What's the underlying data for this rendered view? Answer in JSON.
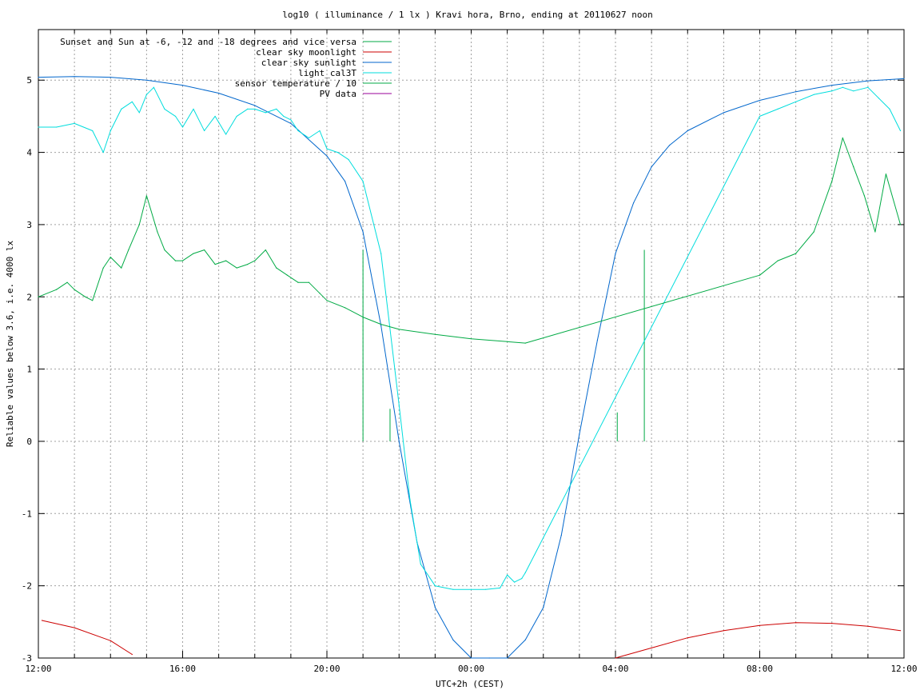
{
  "chart_data": {
    "type": "line",
    "title": "log10 ( illuminance / 1 lx ) Kravi hora, Brno, ending at 20110627 noon",
    "xlabel": "UTC+2h (CEST)",
    "ylabel": "Reliable values below 3.6, i.e. 4000 lx",
    "xlim": [
      0,
      24
    ],
    "ylim": [
      -3,
      5.7
    ],
    "x_tick_labels": [
      {
        "x": 0,
        "label": "12:00"
      },
      {
        "x": 4,
        "label": "16:00"
      },
      {
        "x": 8,
        "label": "20:00"
      },
      {
        "x": 12,
        "label": "00:00"
      },
      {
        "x": 16,
        "label": "04:00"
      },
      {
        "x": 20,
        "label": "08:00"
      },
      {
        "x": 24,
        "label": "12:00"
      }
    ],
    "y_ticks": [
      -3,
      -2,
      -1,
      0,
      1,
      2,
      3,
      4,
      5
    ],
    "grid": true,
    "legend_position": "top-left",
    "series": [
      {
        "name": "Sunset and Sun at -6, -12 and -18 degrees and vice versa",
        "color": "#00aa44",
        "kind": "impulses",
        "x": [
          9.0,
          9.75,
          10.75,
          15.0,
          16.05,
          16.8
        ],
        "values": [
          2.65,
          0.45,
          0.0,
          0.0,
          0.4,
          2.65
        ]
      },
      {
        "name": "clear sky moonlight",
        "color": "#cc0000",
        "x": [
          0.1,
          1.0,
          2.0,
          2.6,
          16.0,
          17.0,
          18.0,
          19.0,
          20.0,
          21.0,
          22.0,
          23.0,
          23.9
        ],
        "values": [
          -2.48,
          -2.58,
          -2.76,
          -2.95,
          -3.0,
          -2.86,
          -2.72,
          -2.62,
          -2.55,
          -2.51,
          -2.52,
          -2.56,
          -2.62
        ]
      },
      {
        "name": "clear sky sunlight",
        "color": "#0066cc",
        "x": [
          0,
          1,
          2,
          3,
          4,
          5,
          6,
          7,
          8,
          8.5,
          9,
          9.5,
          10,
          10.5,
          11,
          11.5,
          12,
          12.5,
          13,
          13.5,
          14,
          14.5,
          15,
          15.5,
          16,
          16.5,
          17,
          17.5,
          18,
          19,
          20,
          21,
          22,
          23,
          24
        ],
        "values": [
          5.04,
          5.05,
          5.04,
          5.0,
          4.93,
          4.82,
          4.65,
          4.4,
          3.95,
          3.6,
          2.9,
          1.6,
          0.0,
          -1.4,
          -2.3,
          -2.75,
          -3.0,
          -3.15,
          -3.0,
          -2.75,
          -2.3,
          -1.3,
          0.1,
          1.4,
          2.6,
          3.3,
          3.8,
          4.1,
          4.3,
          4.55,
          4.72,
          4.84,
          4.93,
          4.99,
          5.02
        ]
      },
      {
        "name": "light_cal3T",
        "color": "#00dddd",
        "x": [
          0,
          0.5,
          1.0,
          1.5,
          1.8,
          2.0,
          2.3,
          2.6,
          2.8,
          3.0,
          3.2,
          3.5,
          3.8,
          4.0,
          4.3,
          4.6,
          4.9,
          5.2,
          5.5,
          5.8,
          6.0,
          6.3,
          6.6,
          6.8,
          7.0,
          7.2,
          7.5,
          7.8,
          8.0,
          8.3,
          8.6,
          9.0,
          9.5,
          10.0,
          10.3,
          10.6,
          11.0,
          11.5,
          12.0,
          12.4,
          12.8,
          13.0,
          13.2,
          13.4,
          13.5,
          20.0,
          20.5,
          21.0,
          21.5,
          22.0,
          22.3,
          22.6,
          23.0,
          23.3,
          23.6,
          23.9
        ],
        "values": [
          4.35,
          4.35,
          4.4,
          4.3,
          4.0,
          4.3,
          4.6,
          4.7,
          4.55,
          4.8,
          4.9,
          4.6,
          4.5,
          4.35,
          4.6,
          4.3,
          4.5,
          4.25,
          4.5,
          4.6,
          4.6,
          4.55,
          4.6,
          4.5,
          4.45,
          4.3,
          4.2,
          4.3,
          4.05,
          4.0,
          3.9,
          3.6,
          2.6,
          0.5,
          -0.8,
          -1.7,
          -2.0,
          -2.05,
          -2.05,
          -2.05,
          -2.03,
          -1.85,
          -1.95,
          -1.9,
          -1.82,
          4.5,
          4.6,
          4.7,
          4.8,
          4.85,
          4.9,
          4.85,
          4.9,
          4.75,
          4.6,
          4.3
        ]
      },
      {
        "name": "sensor temperature / 10",
        "color": "#00aa44",
        "x": [
          0,
          0.5,
          0.8,
          1.0,
          1.3,
          1.5,
          1.8,
          2.0,
          2.3,
          2.5,
          2.8,
          3.0,
          3.3,
          3.5,
          3.8,
          4.0,
          4.3,
          4.6,
          4.9,
          5.2,
          5.5,
          5.8,
          6.0,
          6.3,
          6.6,
          6.9,
          7.2,
          7.5,
          7.8,
          8.0,
          8.5,
          9.0,
          9.5,
          10.0,
          11.0,
          12.0,
          13.0,
          13.5,
          20.0,
          20.5,
          21.0,
          21.5,
          22.0,
          22.3,
          22.6,
          22.9,
          23.2,
          23.5,
          23.9
        ],
        "values": [
          2.0,
          2.1,
          2.2,
          2.1,
          2.0,
          1.95,
          2.4,
          2.55,
          2.4,
          2.65,
          3.0,
          3.4,
          2.9,
          2.65,
          2.5,
          2.5,
          2.6,
          2.65,
          2.45,
          2.5,
          2.4,
          2.45,
          2.5,
          2.65,
          2.4,
          2.3,
          2.2,
          2.2,
          2.05,
          1.95,
          1.85,
          1.72,
          1.62,
          1.55,
          1.48,
          1.42,
          1.38,
          1.36,
          2.3,
          2.5,
          2.6,
          2.9,
          3.6,
          4.2,
          3.8,
          3.4,
          2.9,
          3.7,
          3.0
        ]
      },
      {
        "name": "PV data",
        "color": "#990099",
        "x": [],
        "values": []
      }
    ]
  }
}
